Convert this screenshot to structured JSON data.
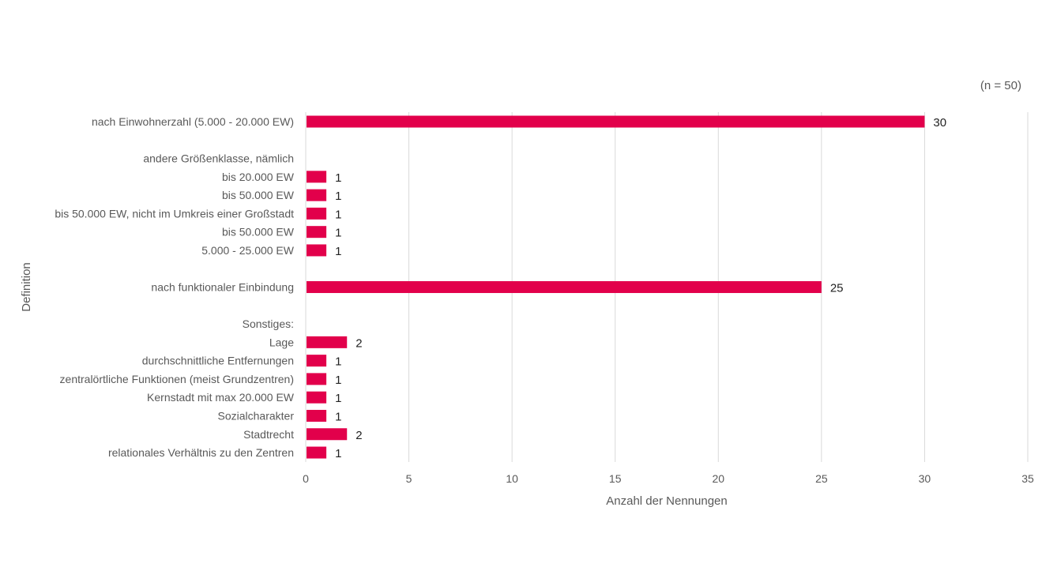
{
  "note": "(n = 50)",
  "chart_data": {
    "type": "bar",
    "orientation": "horizontal",
    "xlabel": "Anzahl der Nennungen",
    "ylabel": "Definition",
    "xlim": [
      0,
      35
    ],
    "xticks": [
      "0",
      "5",
      "10",
      "15",
      "20",
      "25",
      "30",
      "35"
    ],
    "grid": true,
    "color": "#e2004b",
    "categories": [
      "nach Einwohnerzahl (5.000 - 20.000 EW)",
      "",
      "andere Größenklasse, nämlich",
      "bis 20.000 EW",
      "bis 50.000 EW",
      "bis 50.000 EW, nicht im Umkreis einer Großstadt",
      "bis 50.000 EW",
      "5.000 - 25.000 EW",
      "",
      "nach funktionaler Einbindung",
      "",
      "Sonstiges:",
      "Lage",
      "durchschnittliche Entfernungen",
      "zentralörtliche Funktionen (meist Grundzentren)",
      "Kernstadt mit max 20.000 EW",
      "Sozialcharakter",
      "Stadtrecht",
      "relationales Verhältnis zu den Zentren"
    ],
    "values": [
      30,
      null,
      null,
      1,
      1,
      1,
      1,
      1,
      null,
      25,
      null,
      null,
      2,
      1,
      1,
      1,
      1,
      2,
      1
    ],
    "value_labels": [
      "30",
      "",
      "",
      "1",
      "1",
      "1",
      "1",
      "1",
      "",
      "25",
      "",
      "",
      "2",
      "1",
      "1",
      "1",
      "1",
      "2",
      "1"
    ]
  }
}
